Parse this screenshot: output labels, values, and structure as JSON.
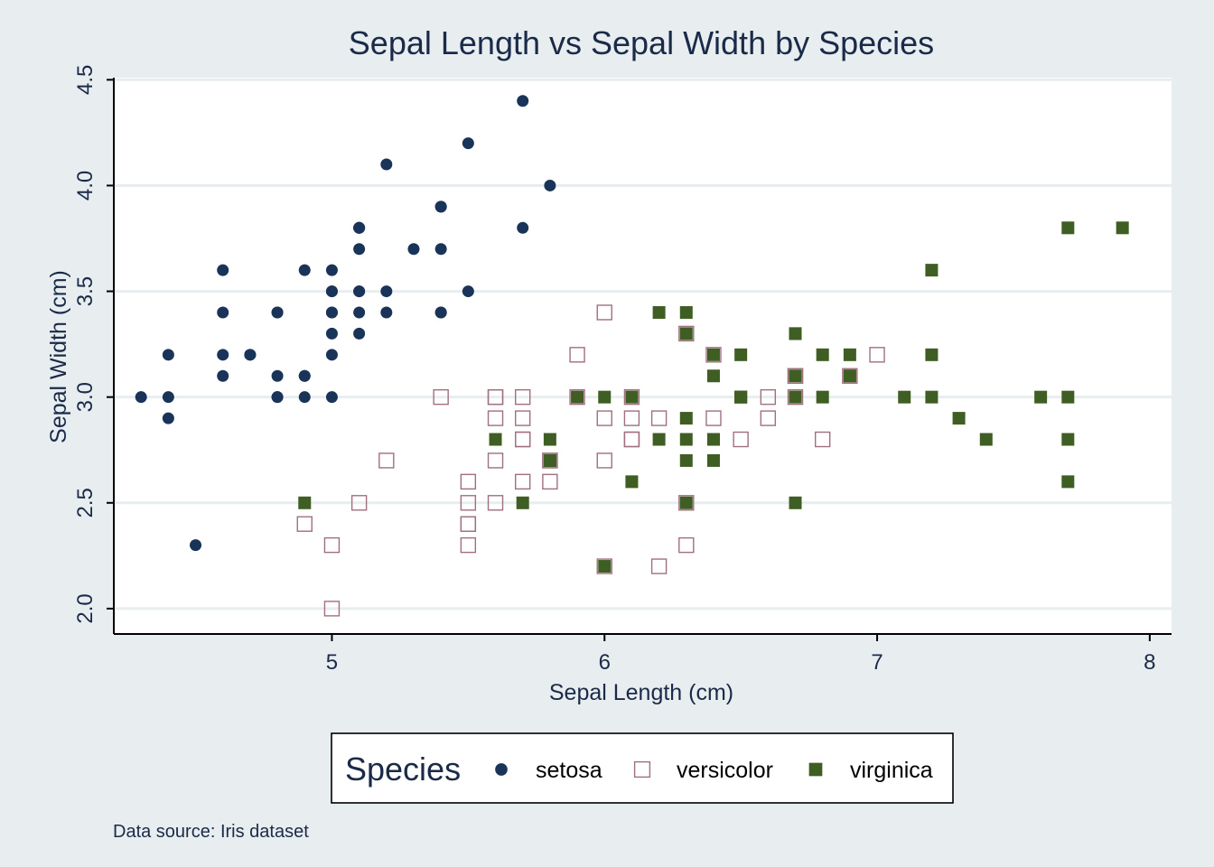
{
  "colors": {
    "background": "#e8eef0",
    "plot_background": "#ffffff",
    "grid": "#e8eef0",
    "text": "#1a2a48",
    "setosa": "#1a3358",
    "versicolor": "#a07080",
    "virginica": "#3f5e23"
  },
  "footnote": "Data source: Iris dataset",
  "chart_data": {
    "type": "scatter",
    "title": "Sepal Length vs Sepal Width by Species",
    "xlabel": "Sepal Length (cm)",
    "ylabel": "Sepal Width (cm)",
    "xlim": [
      4.2,
      8.08
    ],
    "ylim": [
      1.88,
      4.51
    ],
    "xticks": [
      {
        "value": 5,
        "label": "5"
      },
      {
        "value": 6,
        "label": "6"
      },
      {
        "value": 7,
        "label": "7"
      },
      {
        "value": 8,
        "label": "8"
      }
    ],
    "yticks": [
      {
        "value": 2.0,
        "label": "2.0"
      },
      {
        "value": 2.5,
        "label": "2.5"
      },
      {
        "value": 3.0,
        "label": "3.0"
      },
      {
        "value": 3.5,
        "label": "3.5"
      },
      {
        "value": 4.0,
        "label": "4.0"
      },
      {
        "value": 4.5,
        "label": "4.5"
      }
    ],
    "grid": true,
    "legend": {
      "title": "Species",
      "position": "bottom"
    },
    "series": [
      {
        "name": "setosa",
        "marker": "filled-circle",
        "points": [
          [
            5.1,
            3.5
          ],
          [
            4.9,
            3.0
          ],
          [
            4.7,
            3.2
          ],
          [
            4.6,
            3.1
          ],
          [
            5.0,
            3.6
          ],
          [
            5.4,
            3.9
          ],
          [
            4.6,
            3.4
          ],
          [
            5.0,
            3.4
          ],
          [
            4.4,
            2.9
          ],
          [
            4.9,
            3.1
          ],
          [
            5.4,
            3.7
          ],
          [
            4.8,
            3.4
          ],
          [
            4.8,
            3.0
          ],
          [
            4.3,
            3.0
          ],
          [
            5.8,
            4.0
          ],
          [
            5.7,
            4.4
          ],
          [
            5.4,
            3.9
          ],
          [
            5.1,
            3.5
          ],
          [
            5.7,
            3.8
          ],
          [
            5.1,
            3.8
          ],
          [
            5.4,
            3.4
          ],
          [
            5.1,
            3.7
          ],
          [
            4.6,
            3.6
          ],
          [
            5.1,
            3.3
          ],
          [
            4.8,
            3.4
          ],
          [
            5.0,
            3.0
          ],
          [
            5.0,
            3.4
          ],
          [
            5.2,
            3.5
          ],
          [
            5.2,
            3.4
          ],
          [
            4.7,
            3.2
          ],
          [
            4.8,
            3.1
          ],
          [
            5.4,
            3.4
          ],
          [
            5.2,
            4.1
          ],
          [
            5.5,
            4.2
          ],
          [
            4.9,
            3.1
          ],
          [
            5.0,
            3.2
          ],
          [
            5.5,
            3.5
          ],
          [
            4.9,
            3.6
          ],
          [
            4.4,
            3.0
          ],
          [
            5.1,
            3.4
          ],
          [
            5.0,
            3.5
          ],
          [
            4.5,
            2.3
          ],
          [
            4.4,
            3.2
          ],
          [
            5.0,
            3.5
          ],
          [
            5.1,
            3.8
          ],
          [
            4.8,
            3.0
          ],
          [
            5.1,
            3.8
          ],
          [
            4.6,
            3.2
          ],
          [
            5.3,
            3.7
          ],
          [
            5.0,
            3.3
          ]
        ]
      },
      {
        "name": "versicolor",
        "marker": "hollow-square",
        "points": [
          [
            7.0,
            3.2
          ],
          [
            6.4,
            3.2
          ],
          [
            6.9,
            3.1
          ],
          [
            5.5,
            2.3
          ],
          [
            6.5,
            2.8
          ],
          [
            5.7,
            2.8
          ],
          [
            6.3,
            3.3
          ],
          [
            4.9,
            2.4
          ],
          [
            6.6,
            2.9
          ],
          [
            5.2,
            2.7
          ],
          [
            5.0,
            2.0
          ],
          [
            5.9,
            3.0
          ],
          [
            6.0,
            2.2
          ],
          [
            6.1,
            2.9
          ],
          [
            5.6,
            2.9
          ],
          [
            6.7,
            3.1
          ],
          [
            5.6,
            3.0
          ],
          [
            5.8,
            2.7
          ],
          [
            6.2,
            2.2
          ],
          [
            5.6,
            2.5
          ],
          [
            5.9,
            3.2
          ],
          [
            6.1,
            2.8
          ],
          [
            6.3,
            2.5
          ],
          [
            6.1,
            2.8
          ],
          [
            6.4,
            2.9
          ],
          [
            6.6,
            3.0
          ],
          [
            6.8,
            2.8
          ],
          [
            6.7,
            3.0
          ],
          [
            6.0,
            2.9
          ],
          [
            5.7,
            2.6
          ],
          [
            5.5,
            2.4
          ],
          [
            5.5,
            2.4
          ],
          [
            5.8,
            2.7
          ],
          [
            6.0,
            2.7
          ],
          [
            5.4,
            3.0
          ],
          [
            6.0,
            3.4
          ],
          [
            6.7,
            3.1
          ],
          [
            6.3,
            2.3
          ],
          [
            5.6,
            3.0
          ],
          [
            5.5,
            2.5
          ],
          [
            5.5,
            2.6
          ],
          [
            6.1,
            3.0
          ],
          [
            5.8,
            2.6
          ],
          [
            5.0,
            2.3
          ],
          [
            5.6,
            2.7
          ],
          [
            5.7,
            3.0
          ],
          [
            5.7,
            2.9
          ],
          [
            6.2,
            2.9
          ],
          [
            5.1,
            2.5
          ],
          [
            5.7,
            2.8
          ]
        ]
      },
      {
        "name": "virginica",
        "marker": "filled-square",
        "points": [
          [
            6.3,
            3.3
          ],
          [
            5.8,
            2.7
          ],
          [
            7.1,
            3.0
          ],
          [
            6.3,
            2.9
          ],
          [
            6.5,
            3.0
          ],
          [
            7.6,
            3.0
          ],
          [
            4.9,
            2.5
          ],
          [
            7.3,
            2.9
          ],
          [
            6.7,
            2.5
          ],
          [
            7.2,
            3.6
          ],
          [
            6.5,
            3.2
          ],
          [
            6.4,
            2.7
          ],
          [
            6.8,
            3.0
          ],
          [
            5.7,
            2.5
          ],
          [
            5.8,
            2.8
          ],
          [
            6.4,
            3.2
          ],
          [
            6.5,
            3.0
          ],
          [
            7.7,
            3.8
          ],
          [
            7.7,
            2.6
          ],
          [
            6.0,
            2.2
          ],
          [
            6.9,
            3.2
          ],
          [
            5.6,
            2.8
          ],
          [
            7.7,
            2.8
          ],
          [
            6.3,
            2.7
          ],
          [
            6.7,
            3.3
          ],
          [
            7.2,
            3.2
          ],
          [
            6.2,
            2.8
          ],
          [
            6.1,
            3.0
          ],
          [
            6.4,
            2.8
          ],
          [
            7.2,
            3.0
          ],
          [
            7.4,
            2.8
          ],
          [
            7.9,
            3.8
          ],
          [
            6.4,
            2.8
          ],
          [
            6.3,
            2.8
          ],
          [
            6.1,
            2.6
          ],
          [
            7.7,
            3.0
          ],
          [
            6.3,
            3.4
          ],
          [
            6.4,
            3.1
          ],
          [
            6.0,
            3.0
          ],
          [
            6.9,
            3.1
          ],
          [
            6.7,
            3.1
          ],
          [
            6.9,
            3.1
          ],
          [
            5.8,
            2.7
          ],
          [
            6.8,
            3.2
          ],
          [
            6.7,
            3.3
          ],
          [
            6.7,
            3.0
          ],
          [
            6.3,
            2.5
          ],
          [
            6.5,
            3.0
          ],
          [
            6.2,
            3.4
          ],
          [
            5.9,
            3.0
          ]
        ]
      }
    ]
  }
}
